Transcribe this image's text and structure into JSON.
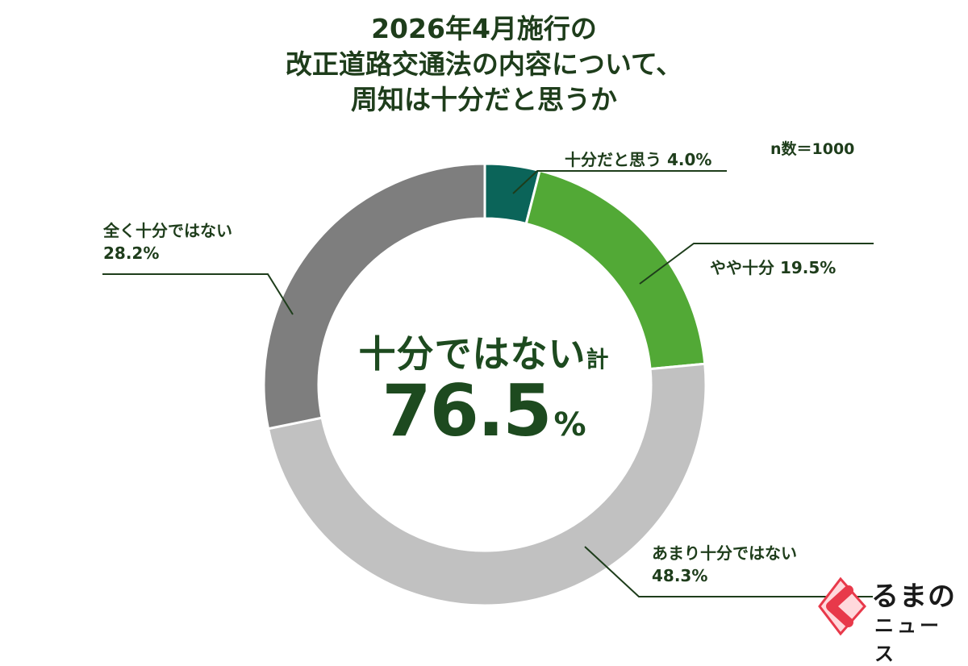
{
  "title_lines": [
    "2026年4月施行の",
    "改正道路交通法の内容について、",
    "周知は十分だと思うか"
  ],
  "sample_size": "n数＝1000",
  "center": {
    "label": "十分ではない",
    "label_suffix": "計",
    "value": "76.5",
    "unit": "%"
  },
  "chart_data": {
    "type": "pie",
    "title": "2026年4月施行の改正道路交通法の内容について、周知は十分だと思うか",
    "slices": [
      {
        "label": "十分だと思う",
        "value": 4.0,
        "display": "4.0%",
        "color": "#0b6459"
      },
      {
        "label": "やや十分",
        "value": 19.5,
        "display": "19.5%",
        "color": "#52a936"
      },
      {
        "label": "あまり十分ではない",
        "value": 48.3,
        "display": "48.3%",
        "color": "#c1c1c1"
      },
      {
        "label": "全く十分ではない",
        "value": 28.2,
        "display": "28.2%",
        "color": "#7e7e7e"
      }
    ]
  },
  "labels": {
    "s0": "十分だと思う 4.0%",
    "s1": "やや十分 19.5%",
    "s2_line1": "あまり十分ではない",
    "s2_line2": "48.3%",
    "s3_line1": "全く十分ではない",
    "s3_line2": "28.2%"
  },
  "logo": {
    "line1": "るまの",
    "line2": "ニュース",
    "accent": "#e8394a"
  }
}
